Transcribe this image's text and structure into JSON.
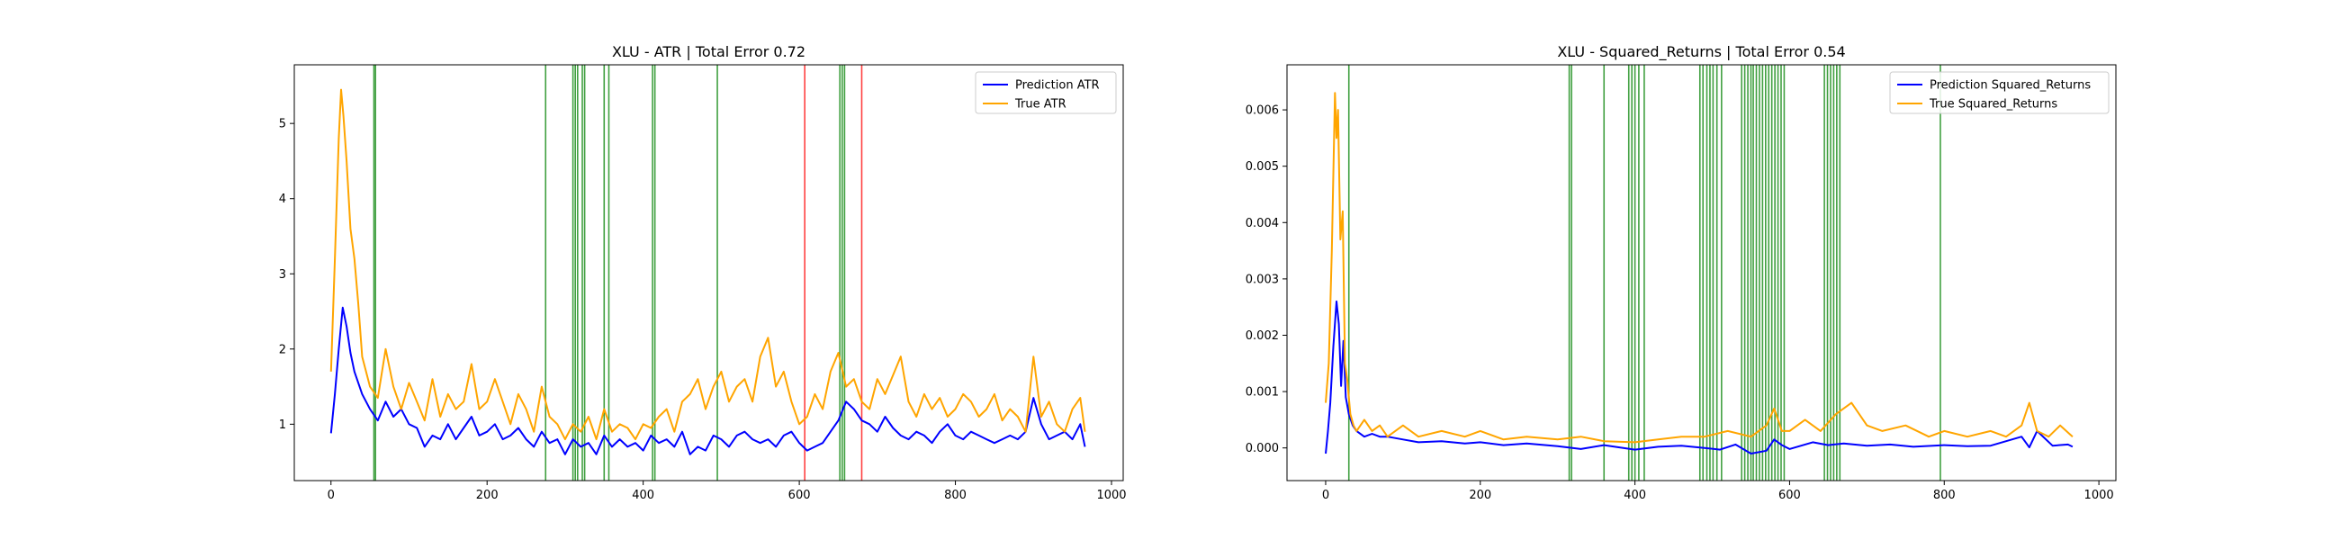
{
  "colors": {
    "prediction": "#0000ff",
    "truth": "#ffa500",
    "good_marker": "#008000",
    "bad_marker": "#ff0000",
    "axes": "#000000"
  },
  "chart_data": [
    {
      "type": "line",
      "title": "XLU - ATR | Total Error 0.72",
      "xlabel": "",
      "ylabel": "",
      "xlim": [
        -47,
        1015
      ],
      "ylim": [
        0.25,
        5.78
      ],
      "xticks": [
        0,
        200,
        400,
        600,
        800,
        1000
      ],
      "yticks": [
        1,
        2,
        3,
        4,
        5
      ],
      "xtick_labels": [
        "0",
        "200",
        "400",
        "600",
        "800",
        "1000"
      ],
      "ytick_labels": [
        "1",
        "2",
        "3",
        "4",
        "5"
      ],
      "grid": false,
      "legend": "top-right",
      "series": [
        {
          "name": "Prediction ATR",
          "color": "blue",
          "x": [
            0,
            5,
            10,
            15,
            20,
            25,
            30,
            40,
            50,
            60,
            70,
            80,
            90,
            100,
            110,
            120,
            130,
            140,
            150,
            160,
            170,
            180,
            190,
            200,
            210,
            220,
            230,
            240,
            250,
            260,
            270,
            280,
            290,
            300,
            310,
            320,
            330,
            340,
            350,
            360,
            370,
            380,
            390,
            400,
            410,
            420,
            430,
            440,
            450,
            460,
            470,
            480,
            490,
            500,
            510,
            520,
            530,
            540,
            550,
            560,
            570,
            580,
            590,
            600,
            610,
            620,
            630,
            640,
            650,
            660,
            670,
            680,
            690,
            700,
            710,
            720,
            730,
            740,
            750,
            760,
            770,
            780,
            790,
            800,
            810,
            820,
            830,
            840,
            850,
            860,
            870,
            880,
            890,
            900,
            910,
            920,
            930,
            940,
            950,
            960,
            966
          ],
          "y": [
            0.88,
            1.4,
            2.0,
            2.55,
            2.3,
            1.95,
            1.7,
            1.4,
            1.2,
            1.05,
            1.3,
            1.1,
            1.2,
            1.0,
            0.95,
            0.7,
            0.85,
            0.8,
            1.0,
            0.8,
            0.95,
            1.1,
            0.85,
            0.9,
            1.0,
            0.8,
            0.85,
            0.95,
            0.8,
            0.7,
            0.9,
            0.75,
            0.8,
            0.6,
            0.8,
            0.7,
            0.75,
            0.6,
            0.85,
            0.7,
            0.8,
            0.7,
            0.75,
            0.65,
            0.85,
            0.75,
            0.8,
            0.7,
            0.9,
            0.6,
            0.7,
            0.65,
            0.85,
            0.8,
            0.7,
            0.85,
            0.9,
            0.8,
            0.75,
            0.8,
            0.7,
            0.85,
            0.9,
            0.75,
            0.65,
            0.7,
            0.75,
            0.9,
            1.05,
            1.3,
            1.2,
            1.05,
            1.0,
            0.9,
            1.1,
            0.95,
            0.85,
            0.8,
            0.9,
            0.85,
            0.75,
            0.9,
            1.0,
            0.85,
            0.8,
            0.9,
            0.85,
            0.8,
            0.75,
            0.8,
            0.85,
            0.8,
            0.9,
            1.35,
            1.0,
            0.8,
            0.85,
            0.9,
            0.8,
            1.0,
            0.7
          ]
        },
        {
          "name": "True ATR",
          "color": "orange",
          "x": [
            0,
            5,
            10,
            13,
            16,
            20,
            25,
            30,
            35,
            40,
            50,
            60,
            70,
            80,
            90,
            100,
            110,
            120,
            130,
            140,
            150,
            160,
            170,
            180,
            190,
            200,
            210,
            220,
            230,
            240,
            250,
            260,
            270,
            280,
            290,
            300,
            310,
            320,
            330,
            340,
            350,
            360,
            370,
            380,
            390,
            400,
            410,
            420,
            430,
            440,
            450,
            460,
            470,
            480,
            490,
            500,
            510,
            520,
            530,
            540,
            550,
            560,
            570,
            580,
            590,
            600,
            610,
            620,
            630,
            640,
            650,
            660,
            670,
            680,
            690,
            700,
            710,
            720,
            730,
            740,
            750,
            760,
            770,
            780,
            790,
            800,
            810,
            820,
            830,
            840,
            850,
            860,
            870,
            880,
            890,
            900,
            910,
            920,
            930,
            940,
            950,
            960,
            966
          ],
          "y": [
            1.7,
            3.2,
            4.8,
            5.45,
            5.1,
            4.5,
            3.6,
            3.2,
            2.6,
            1.9,
            1.5,
            1.35,
            2.0,
            1.5,
            1.2,
            1.55,
            1.3,
            1.05,
            1.6,
            1.1,
            1.4,
            1.2,
            1.3,
            1.8,
            1.2,
            1.3,
            1.6,
            1.3,
            1.0,
            1.4,
            1.2,
            0.9,
            1.5,
            1.1,
            1.0,
            0.8,
            1.0,
            0.9,
            1.1,
            0.8,
            1.2,
            0.9,
            1.0,
            0.95,
            0.8,
            1.0,
            0.95,
            1.1,
            1.2,
            0.9,
            1.3,
            1.4,
            1.6,
            1.2,
            1.5,
            1.7,
            1.3,
            1.5,
            1.6,
            1.3,
            1.9,
            2.15,
            1.5,
            1.7,
            1.3,
            1.0,
            1.1,
            1.4,
            1.2,
            1.7,
            1.95,
            1.5,
            1.6,
            1.3,
            1.2,
            1.6,
            1.4,
            1.65,
            1.9,
            1.3,
            1.1,
            1.4,
            1.2,
            1.35,
            1.1,
            1.2,
            1.4,
            1.3,
            1.1,
            1.2,
            1.4,
            1.05,
            1.2,
            1.1,
            0.9,
            1.9,
            1.1,
            1.3,
            1.0,
            0.9,
            1.2,
            1.35,
            0.9
          ]
        }
      ],
      "vertical_lines": [
        {
          "x": 55,
          "color": "green"
        },
        {
          "x": 57,
          "color": "green"
        },
        {
          "x": 275,
          "color": "green"
        },
        {
          "x": 310,
          "color": "green"
        },
        {
          "x": 313,
          "color": "green"
        },
        {
          "x": 316,
          "color": "green"
        },
        {
          "x": 322,
          "color": "green"
        },
        {
          "x": 325,
          "color": "green"
        },
        {
          "x": 350,
          "color": "green"
        },
        {
          "x": 356,
          "color": "green"
        },
        {
          "x": 412,
          "color": "green"
        },
        {
          "x": 415,
          "color": "green"
        },
        {
          "x": 495,
          "color": "green"
        },
        {
          "x": 607,
          "color": "red"
        },
        {
          "x": 652,
          "color": "green"
        },
        {
          "x": 655,
          "color": "green"
        },
        {
          "x": 658,
          "color": "green"
        },
        {
          "x": 680,
          "color": "red"
        }
      ]
    },
    {
      "type": "line",
      "title": "XLU - Squared_Returns | Total Error 0.54",
      "xlabel": "",
      "ylabel": "",
      "xlim": [
        -50,
        1022
      ],
      "ylim": [
        -0.00058,
        0.0068
      ],
      "xticks": [
        0,
        200,
        400,
        600,
        800,
        1000
      ],
      "yticks": [
        0.0,
        0.001,
        0.002,
        0.003,
        0.004,
        0.005,
        0.006
      ],
      "xtick_labels": [
        "0",
        "200",
        "400",
        "600",
        "800",
        "1000"
      ],
      "ytick_labels": [
        "0.000",
        "0.001",
        "0.002",
        "0.003",
        "0.004",
        "0.005",
        "0.006"
      ],
      "grid": false,
      "legend": "top-right",
      "series": [
        {
          "name": "Prediction Squared_Returns",
          "color": "blue",
          "x": [
            0,
            3,
            6,
            10,
            14,
            17,
            20,
            23,
            26,
            30,
            35,
            40,
            50,
            60,
            70,
            80,
            100,
            120,
            150,
            180,
            200,
            230,
            260,
            300,
            330,
            360,
            400,
            430,
            460,
            490,
            510,
            530,
            550,
            570,
            580,
            590,
            600,
            630,
            650,
            670,
            700,
            730,
            760,
            800,
            830,
            860,
            900,
            910,
            920,
            940,
            960,
            966
          ],
          "y": [
            -0.0001,
            0.0003,
            0.0008,
            0.0018,
            0.0026,
            0.0022,
            0.0011,
            0.0019,
            0.0009,
            0.0006,
            0.0004,
            0.0003,
            0.0002,
            0.00025,
            0.0002,
            0.0002,
            0.00015,
            0.0001,
            0.00012,
            8e-05,
            0.0001,
            5e-05,
            8e-05,
            3e-05,
            -2e-05,
            5e-05,
            -3e-05,
            2e-05,
            4e-05,
            0.0,
            -3e-05,
            6e-05,
            -0.0001,
            -5e-05,
            0.00015,
            5e-05,
            -2e-05,
            0.0001,
            5e-05,
            8e-05,
            4e-05,
            6e-05,
            2e-05,
            5e-05,
            3e-05,
            4e-05,
            0.0002,
            1e-05,
            0.0003,
            4e-05,
            6e-05,
            2e-05
          ]
        },
        {
          "name": "True Squared_Returns",
          "color": "orange",
          "x": [
            0,
            4,
            8,
            12,
            14,
            16,
            19,
            22,
            25,
            28,
            32,
            36,
            40,
            50,
            60,
            70,
            80,
            90,
            100,
            120,
            150,
            180,
            200,
            230,
            260,
            300,
            330,
            360,
            400,
            430,
            460,
            490,
            520,
            550,
            570,
            580,
            590,
            600,
            620,
            640,
            660,
            680,
            700,
            720,
            750,
            780,
            800,
            830,
            860,
            880,
            900,
            910,
            920,
            935,
            950,
            966
          ],
          "y": [
            0.0008,
            0.0015,
            0.0035,
            0.0063,
            0.0055,
            0.006,
            0.0037,
            0.0042,
            0.0015,
            0.0012,
            0.0006,
            0.0004,
            0.0003,
            0.0005,
            0.0003,
            0.0004,
            0.0002,
            0.0003,
            0.0004,
            0.0002,
            0.0003,
            0.0002,
            0.0003,
            0.00015,
            0.0002,
            0.00015,
            0.0002,
            0.00012,
            0.0001,
            0.00015,
            0.0002,
            0.0002,
            0.0003,
            0.0002,
            0.0004,
            0.0007,
            0.0003,
            0.0003,
            0.0005,
            0.0003,
            0.0006,
            0.0008,
            0.0004,
            0.0003,
            0.0004,
            0.0002,
            0.0003,
            0.0002,
            0.0003,
            0.0002,
            0.0004,
            0.0008,
            0.0003,
            0.0002,
            0.0004,
            0.0002
          ]
        }
      ],
      "vertical_lines": [
        {
          "x": 30,
          "color": "green"
        },
        {
          "x": 315,
          "color": "green"
        },
        {
          "x": 318,
          "color": "green"
        },
        {
          "x": 360,
          "color": "green"
        },
        {
          "x": 392,
          "color": "green"
        },
        {
          "x": 396,
          "color": "green"
        },
        {
          "x": 400,
          "color": "green"
        },
        {
          "x": 405,
          "color": "green"
        },
        {
          "x": 412,
          "color": "green"
        },
        {
          "x": 484,
          "color": "green"
        },
        {
          "x": 488,
          "color": "green"
        },
        {
          "x": 493,
          "color": "green"
        },
        {
          "x": 497,
          "color": "green"
        },
        {
          "x": 501,
          "color": "green"
        },
        {
          "x": 506,
          "color": "green"
        },
        {
          "x": 512,
          "color": "green"
        },
        {
          "x": 538,
          "color": "green"
        },
        {
          "x": 542,
          "color": "green"
        },
        {
          "x": 546,
          "color": "green"
        },
        {
          "x": 550,
          "color": "green"
        },
        {
          "x": 553,
          "color": "green"
        },
        {
          "x": 557,
          "color": "green"
        },
        {
          "x": 561,
          "color": "green"
        },
        {
          "x": 565,
          "color": "green"
        },
        {
          "x": 569,
          "color": "green"
        },
        {
          "x": 573,
          "color": "green"
        },
        {
          "x": 577,
          "color": "green"
        },
        {
          "x": 581,
          "color": "green"
        },
        {
          "x": 585,
          "color": "green"
        },
        {
          "x": 589,
          "color": "green"
        },
        {
          "x": 593,
          "color": "green"
        },
        {
          "x": 645,
          "color": "green"
        },
        {
          "x": 649,
          "color": "green"
        },
        {
          "x": 653,
          "color": "green"
        },
        {
          "x": 657,
          "color": "green"
        },
        {
          "x": 661,
          "color": "green"
        },
        {
          "x": 665,
          "color": "green"
        },
        {
          "x": 795,
          "color": "green"
        }
      ]
    }
  ]
}
